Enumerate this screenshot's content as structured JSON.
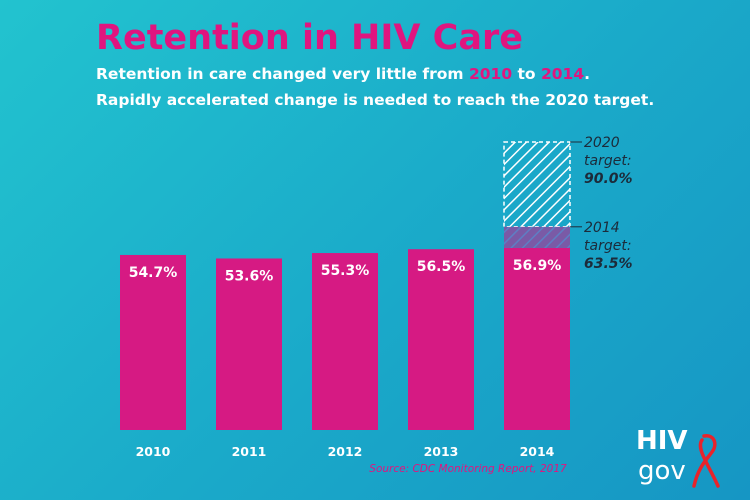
{
  "title": "Retention in HIV Care",
  "subtitle": {
    "line1_part1": "Retention in care changed very little from ",
    "line1_year_from": "2010",
    "line1_part2": " to ",
    "line1_year_to": "2014",
    "line1_part3": ".",
    "line2": "Rapidly accelerated change is needed to reach the 2020 target."
  },
  "chart_data": {
    "type": "bar",
    "categories": [
      "2010",
      "2011",
      "2012",
      "2013",
      "2014"
    ],
    "values": [
      54.7,
      53.6,
      55.3,
      56.5,
      56.9
    ],
    "value_labels": [
      "54.7%",
      "53.6%",
      "55.3%",
      "56.5%",
      "56.9%"
    ],
    "targets": [
      {
        "category": "2014",
        "value": 90.0,
        "label_line1": "2020",
        "label_line2": "target:",
        "label_value": "90.0%"
      },
      {
        "category": "2014",
        "value": 63.5,
        "label_line1": "2014",
        "label_line2": "target:",
        "label_value": "63.5%"
      }
    ],
    "ylim": [
      0,
      100
    ],
    "title": "Retention in HIV Care",
    "xlabel": "",
    "ylabel": "",
    "source": "Source: CDC Monitoring Report, 2017",
    "colors": {
      "bar": "#d61a83",
      "hatch": "#ffffff",
      "text_dark": "#1c2b3a",
      "label_white": "#ffffff"
    }
  },
  "logo": {
    "line1": "HIV",
    "line2": "gov"
  }
}
